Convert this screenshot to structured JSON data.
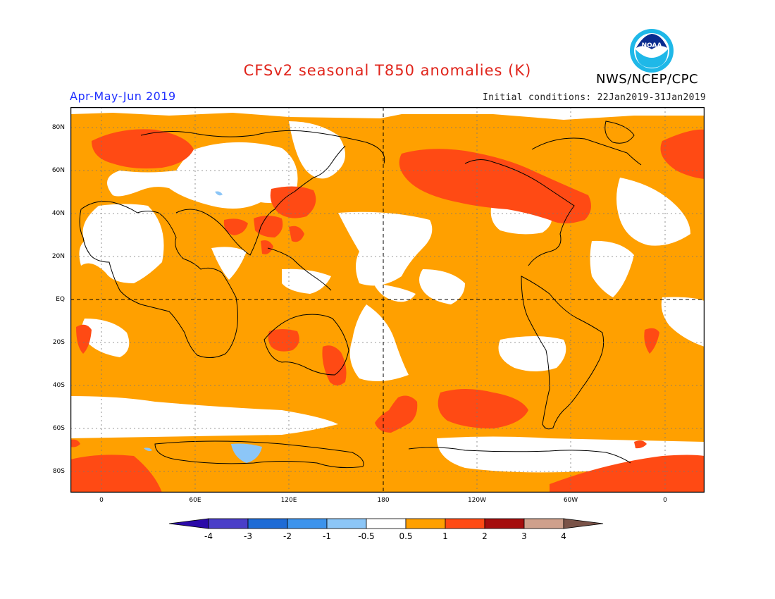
{
  "title": "CFSv2 seasonal T850 anomalies (K)",
  "period": "Apr-May-Jun 2019",
  "initial_conditions": "Initial conditions: 22Jan2019-31Jan2019",
  "agency": "NWS/NCEP/CPC",
  "logo_text": "NOAA",
  "lat_labels": [
    "80N",
    "60N",
    "40N",
    "20N",
    "EQ",
    "20S",
    "40S",
    "60S",
    "80S"
  ],
  "lon_labels": [
    "0",
    "60E",
    "120E",
    "180",
    "120W",
    "60W",
    "0"
  ],
  "colorbar": {
    "labels": [
      "-4",
      "-3",
      "-2",
      "-1",
      "-0.5",
      "0.5",
      "1",
      "2",
      "3",
      "4"
    ],
    "colors": [
      "#2b0aa8",
      "#4a3ec8",
      "#1e6bd6",
      "#3c93ec",
      "#8cc6f7",
      "#ffffff",
      "#ffa000",
      "#ff4a14",
      "#a50e0e",
      "#cfa08c",
      "#7a5348"
    ]
  },
  "colors": {
    "weak_warm": "#ffa000",
    "warm": "#ff4a14",
    "cool": "#8cc6f7",
    "neutral": "#ffffff"
  }
}
